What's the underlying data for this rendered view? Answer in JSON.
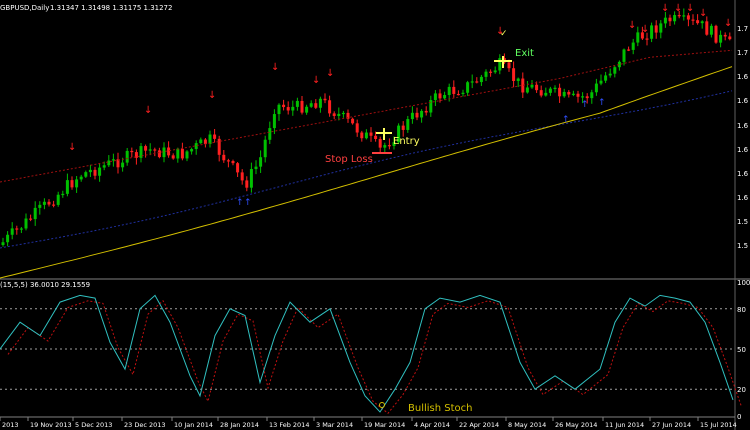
{
  "header": {
    "symbol_text": "GBPUSD,Daily",
    "ohlc_text": "1.31347 1.31498 1.31175 1.31272"
  },
  "indicator": {
    "label_text": "(15,5,5) 36.0010 29.1559",
    "levels": [
      80,
      50,
      20
    ],
    "axis_labels": [
      "100",
      "80",
      "50",
      "20",
      "0"
    ]
  },
  "price_axis_labels": [
    "1.7",
    "1.7",
    "1.6",
    "1.6",
    "1.6",
    "1.6",
    "1.6",
    "1.6",
    "1.5",
    "1.5"
  ],
  "date_labels": [
    "2013",
    "19 Nov 2013",
    "5 Dec 2013",
    "23 Dec 2013",
    "10 Jan 2014",
    "28 Jan 2014",
    "13 Feb 2014",
    "3 Mar 2014",
    "19 Mar 2014",
    "4 Apr 2014",
    "22 Apr 2014",
    "8 May 2014",
    "26 May 2014",
    "11 Jun 2014",
    "27 Jun 2014",
    "15 Jul 2014"
  ],
  "annotations": {
    "entry": "Entry",
    "exit": "Exit",
    "stop_loss": "Stop Loss",
    "bullish_stoch": "Bullish Stoch"
  },
  "colors": {
    "bull": "#00c000",
    "bear": "#ff2020",
    "ma_fast": "#2030a0",
    "ma_slow": "#d4c000",
    "envelope": "#a01010",
    "stoch_main": "#30c0c0",
    "stoch_signal": "#c01010",
    "entry": "#ffff60",
    "exit": "#60ff60",
    "stop": "#ff4040",
    "arrow_sell": "#ff2020",
    "arrow_buy": "#3050ff"
  }
}
